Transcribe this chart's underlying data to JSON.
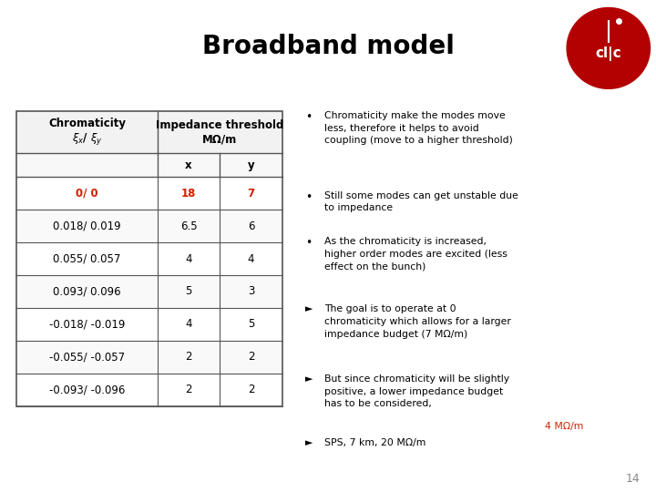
{
  "title": "Broadband model",
  "title_bg_color": "#6b9fd4",
  "title_text_color": "#000000",
  "body_bg_color": "#ffffff",
  "page_number": "14",
  "table_rows": [
    [
      "0/ 0",
      "18",
      "7"
    ],
    [
      "0.018/ 0.019",
      "6.5",
      "6"
    ],
    [
      "0.055/ 0.057",
      "4",
      "4"
    ],
    [
      "0.093/ 0.096",
      "5",
      "3"
    ],
    [
      "-0.018/ -0.019",
      "4",
      "5"
    ],
    [
      "-0.055/ -0.057",
      "2",
      "2"
    ],
    [
      "-0.093/ -0.096",
      "2",
      "2"
    ]
  ],
  "highlight_row": 0,
  "text_color": "#000000",
  "red_color": "#cc2200",
  "font_size_body": 7.8,
  "font_size_table": 8.5
}
